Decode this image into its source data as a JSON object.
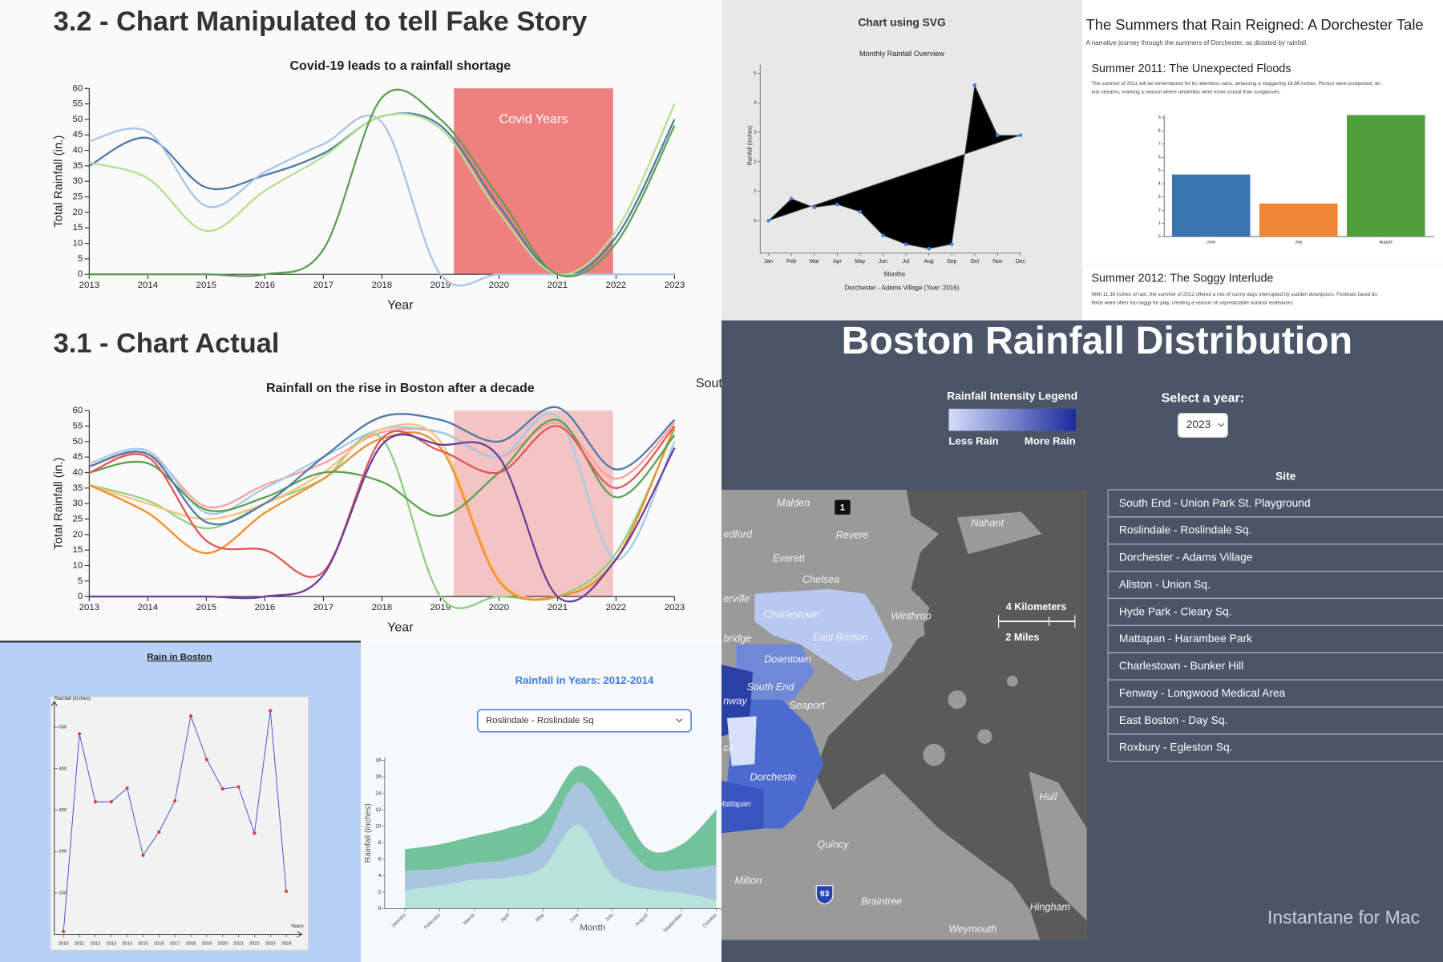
{
  "chart_data": [
    {
      "type": "line",
      "heading": "3.2 - Chart Manipulated to tell Fake Story",
      "title": "Covid-19 leads to a rainfall shortage",
      "x_label": "Year",
      "y_label": "Total Rainfall (in.)",
      "x": [
        2013,
        2014,
        2015,
        2016,
        2017,
        2018,
        2019,
        2020,
        2021,
        2022,
        2023
      ],
      "xlim": [
        2013,
        2023
      ],
      "xticks": [
        2013,
        2014,
        2015,
        2016,
        2017,
        2018,
        2019,
        2020,
        2021,
        2022,
        2023
      ],
      "ylim": [
        0,
        60
      ],
      "yticks": [
        0,
        5,
        10,
        15,
        20,
        25,
        30,
        35,
        40,
        45,
        50,
        55,
        60
      ],
      "highlight": {
        "x": [
          2019.23,
          2021.95
        ],
        "label": "Covid Years",
        "color": "#f08080"
      },
      "series": [
        {
          "color": "#4e79a7",
          "values": [
            35,
            44,
            28,
            32,
            39,
            51,
            48,
            22,
            0,
            12,
            50
          ]
        },
        {
          "color": "#a9c3e6",
          "values": [
            43,
            46,
            22,
            33,
            42,
            49,
            0,
            0,
            0,
            0,
            0
          ]
        },
        {
          "color": "#b5e08f",
          "values": [
            36,
            31,
            14,
            27,
            38,
            51,
            47,
            20,
            0,
            14,
            55
          ]
        },
        {
          "color": "#59a14f",
          "values": [
            0,
            0,
            0,
            0,
            8,
            57,
            50,
            25,
            0,
            10,
            48
          ]
        }
      ]
    },
    {
      "type": "line",
      "heading": "3.1 - Chart Actual",
      "title": "Rainfall on the rise in Boston after a decade",
      "x_label": "Year",
      "y_label": "Total Rainfall (in.)",
      "side_text": "Sout",
      "x": [
        2013,
        2014,
        2015,
        2016,
        2017,
        2018,
        2019,
        2020,
        2021,
        2022,
        2023
      ],
      "xlim": [
        2013,
        2023
      ],
      "xticks": [
        2013,
        2014,
        2015,
        2016,
        2017,
        2018,
        2019,
        2020,
        2021,
        2022,
        2023
      ],
      "ylim": [
        0,
        60
      ],
      "yticks": [
        0,
        5,
        10,
        15,
        20,
        25,
        30,
        35,
        40,
        45,
        50,
        55,
        60
      ],
      "highlight": {
        "x": [
          2019.23,
          2021.95
        ],
        "color": "#f4c4c4"
      },
      "series": [
        {
          "color": "#ff9d9a",
          "values": [
            42,
            46,
            29,
            36,
            43,
            53,
            53,
            45,
            56,
            38,
            56
          ]
        },
        {
          "color": "#a0cbe8",
          "values": [
            43,
            47,
            27,
            35,
            45,
            54,
            53,
            45,
            58,
            12,
            50
          ]
        },
        {
          "color": "#8cd17d",
          "values": [
            36,
            31,
            22,
            30,
            38,
            51,
            0,
            0,
            0,
            14,
            54
          ]
        },
        {
          "color": "#ffbe7d",
          "values": [
            36,
            30,
            25,
            30,
            40,
            54,
            50,
            6,
            0,
            12,
            48
          ]
        },
        {
          "color": "#f28e2b",
          "values": [
            36,
            27,
            14,
            27,
            38,
            51,
            48,
            5,
            0,
            12,
            55
          ]
        },
        {
          "color": "#59a14f",
          "values": [
            40,
            43,
            28,
            32,
            40,
            37,
            26,
            40,
            57,
            32,
            52
          ]
        },
        {
          "color": "#e15759",
          "values": [
            40,
            45,
            18,
            15,
            8,
            51,
            47,
            40,
            55,
            35,
            55
          ]
        },
        {
          "color": "#6a3d9a",
          "values": [
            0,
            0,
            0,
            0,
            7,
            49,
            49,
            45,
            0,
            12,
            48
          ]
        },
        {
          "color": "#4e79a7",
          "values": [
            42,
            46,
            24,
            30,
            45,
            58,
            57,
            50,
            61,
            41,
            57
          ]
        }
      ]
    },
    {
      "type": "line",
      "title": "Chart using SVG",
      "subtitle": "Monthly Rainfall Overview",
      "x_label": "Months",
      "y_label": "Rainfall (inches)",
      "caption": "Dorchester - Adams Village (Year: 2016)",
      "fill": "#000000",
      "color": "#3b82f6",
      "categories": [
        "Jan",
        "Feb",
        "Mar",
        "Apr",
        "May",
        "Jun",
        "Jul",
        "Aug",
        "Sep",
        "Oct",
        "Nov",
        "Dec"
      ],
      "values": [
        0,
        0.75,
        0.45,
        0.55,
        0.3,
        -0.5,
        -0.8,
        -0.95,
        -0.8,
        4.6,
        2.9,
        2.9
      ],
      "ylim": [
        -1.1,
        5.3
      ],
      "yticks": [
        0,
        1,
        2,
        3,
        4,
        5
      ]
    },
    {
      "type": "bar",
      "categories": [
        "June",
        "July",
        "August"
      ],
      "values": [
        4.7,
        2.5,
        9.2
      ],
      "colors": [
        "#3a75b0",
        "#ef8636",
        "#519e3e"
      ],
      "ylim": [
        0,
        9.2
      ],
      "yticks": [
        0,
        1,
        2,
        3,
        4,
        5,
        6,
        7,
        8,
        9
      ]
    },
    {
      "type": "line",
      "title": "Rain in Boston",
      "x_label": "Years",
      "y_label": "Rainfall (inches)",
      "color": "#3949c8",
      "marker_color": "#e53935",
      "x": [
        2010,
        2011,
        2012,
        2013,
        2014,
        2015,
        2016,
        2017,
        2018,
        2019,
        2020,
        2021,
        2022,
        2023,
        2024
      ],
      "values": [
        7,
        484,
        320,
        320,
        353,
        191,
        247,
        322,
        527,
        422,
        351,
        356,
        244,
        540,
        104
      ],
      "xlim": [
        2009.42,
        2024.98
      ],
      "xticks": [
        2010,
        2011,
        2012,
        2013,
        2014,
        2015,
        2016,
        2017,
        2018,
        2019,
        2020,
        2021,
        2022,
        2023,
        2024
      ],
      "ylim": [
        0,
        562
      ],
      "yticks": [
        100,
        200,
        300,
        400,
        500
      ]
    },
    {
      "type": "area",
      "title": "Rainfall in Years: 2012-2014",
      "dropdown": "Roslindale - Roslindale Sq",
      "x_label": "Month",
      "y_label": "Rainfall (inches)",
      "stacked": true,
      "categories": [
        "January",
        "February",
        "March",
        "April",
        "May",
        "June",
        "July",
        "August",
        "September",
        "October"
      ],
      "ylim": [
        0,
        18
      ],
      "yticks": [
        0,
        2,
        4,
        6,
        8,
        10,
        12,
        14,
        16,
        18
      ],
      "series": [
        {
          "color": "#b8e2dc",
          "values": [
            2.2,
            2.8,
            3.5,
            3.8,
            5,
            10.2,
            4,
            2.4,
            1.9,
            1
          ]
        },
        {
          "color": "#a9c5df",
          "values": [
            2.4,
            2,
            2,
            2.2,
            3,
            5.1,
            6,
            2.6,
            2.9,
            4.3
          ]
        },
        {
          "color": "#72c39c",
          "values": [
            2.6,
            3,
            3.3,
            3.8,
            3.5,
            2,
            4,
            2.3,
            3,
            6.7
          ]
        }
      ]
    }
  ],
  "summers_doc": {
    "title": "The Summers that Rain Reigned: A Dorchester Tale",
    "subtitle": "A narrative journey through the summers of Dorchester, as dictated by rainfall.",
    "sections": [
      {
        "heading": "Summer 2011: The Unexpected Floods",
        "lines": [
          "The summer of 2011 will be remembered for its relentless rains, amassing a staggering 16.66 inches. Picnics were postponed, an",
          "into streams, marking a season where umbrellas were more crucial than sunglasses."
        ]
      },
      {
        "heading": "Summer 2012: The Soggy Interlude",
        "lines": [
          "With 11.38 inches of rain, the summer of 2012 offered a mix of sunny days interrupted by sudden downpours. Festivals faced do",
          "fields were often too soggy for play, creating a season of unpredictable outdoor endeavors."
        ]
      }
    ]
  },
  "map_panel": {
    "title": "Boston Rainfall Distribution",
    "legend_title": "Rainfall Intensity Legend",
    "legend_low": "Less Rain",
    "legend_high": "More Rain",
    "year_label": "Select a year:",
    "year": "2023",
    "site_header": "Site",
    "sites": [
      "South End - Union Park St. Playground",
      "Roslindale - Roslindale Sq.",
      "Dorchester - Adams Village",
      "Allston - Union Sq.",
      "Hyde Park - Cleary Sq.",
      "Mattapan - Harambee Park",
      "Charlestown - Bunker Hill",
      "Fenway - Longwood Medical Area",
      "East Boston - Day Sq.",
      "Roxbury - Egleston Sq."
    ],
    "map_labels": [
      "Malden",
      "Revere",
      "edford",
      "Everett",
      "Chelsea",
      "Nahant",
      "erville",
      "Charlestown",
      "Winthrop",
      "East Boston",
      "bridge",
      "Downtown",
      "South End",
      "nway",
      "Seaport",
      "ca",
      "Dorcheste",
      "Mattapan",
      "Hull",
      "Quincy",
      "Milton",
      "Braintree",
      "Hingham",
      "Weymouth"
    ],
    "scale_km": "4 Kilometers",
    "scale_mi": "2 Miles",
    "shields": [
      "1",
      "93"
    ],
    "watermark": "Instantane for Mac"
  }
}
